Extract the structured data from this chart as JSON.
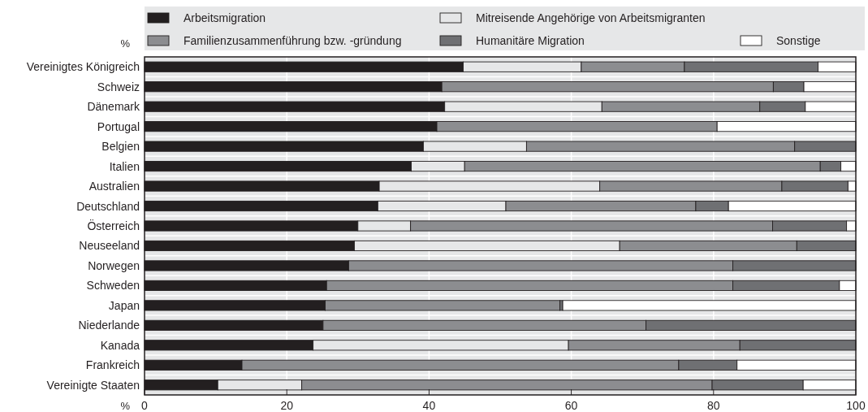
{
  "chart_data": {
    "type": "bar",
    "orientation": "horizontal",
    "stacked": true,
    "ylabel": "%",
    "xlabel": "%",
    "categories": [
      "Vereinigtes Königreich",
      "Schweiz",
      "Dänemark",
      "Portugal",
      "Belgien",
      "Italien",
      "Australien",
      "Deutschland",
      "Österreich",
      "Neuseeland",
      "Norwegen",
      "Schweden",
      "Japan",
      "Niederlande",
      "Kanada",
      "Frankreich",
      "Vereinigte Staaten"
    ],
    "series": [
      {
        "name": "Arbeitsmigration",
        "color": "#231f20",
        "values": [
          44.8,
          41.8,
          42.2,
          41.1,
          39.2,
          37.5,
          33.0,
          32.8,
          30.0,
          29.5,
          28.7,
          25.6,
          25.4,
          25.1,
          23.7,
          13.7,
          10.3
        ]
      },
      {
        "name": "Mitreisende Angehörige von Arbeitsmigranten",
        "color": "#e6e7e8",
        "values": [
          16.6,
          0,
          22.1,
          0,
          14.5,
          7.5,
          31.0,
          18.0,
          7.4,
          37.3,
          0,
          0,
          0,
          0,
          35.9,
          0,
          11.8
        ]
      },
      {
        "name": "Familienzusammenführung bzw. -gründung",
        "color": "#8c8d90",
        "values": [
          14.5,
          46.6,
          22.2,
          39.4,
          37.7,
          50.0,
          25.6,
          26.7,
          50.9,
          24.9,
          54.0,
          57.1,
          33.0,
          45.4,
          24.1,
          61.4,
          57.7
        ]
      },
      {
        "name": "Humanitäre Migration",
        "color": "#6f7073",
        "values": [
          18.8,
          4.3,
          6.4,
          0,
          8.6,
          2.9,
          9.3,
          4.6,
          10.4,
          8.3,
          17.3,
          15.0,
          0.4,
          29.5,
          16.3,
          8.2,
          12.8
        ]
      },
      {
        "name": "Sonstige",
        "color": "#ffffff",
        "values": [
          5.3,
          7.3,
          7.1,
          19.5,
          0,
          2.1,
          1.1,
          17.9,
          1.3,
          0,
          0,
          2.3,
          41.2,
          0,
          0,
          16.7,
          7.4
        ]
      }
    ],
    "xlim": [
      0,
      100
    ],
    "xticks": [
      0,
      20,
      40,
      60,
      80,
      100
    ],
    "grid": "x",
    "legend": "top"
  }
}
